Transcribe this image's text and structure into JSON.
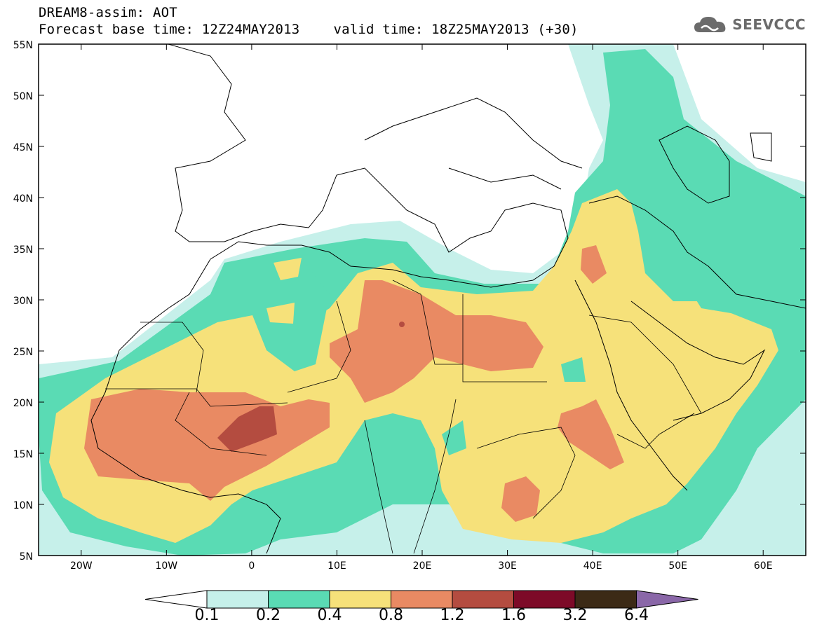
{
  "header": {
    "title": "DREAM8-assim: AOT",
    "base_time": "Forecast base time: 12Z24MAY2013",
    "valid_time": "valid time: 18Z25MAY2013 (+30)"
  },
  "logo": {
    "text": "SEEVCCC",
    "icon": "cloud-icon"
  },
  "map": {
    "lat_labels": [
      "55N",
      "50N",
      "45N",
      "40N",
      "35N",
      "30N",
      "25N",
      "20N",
      "15N",
      "10N",
      "5N"
    ],
    "lon_labels": [
      "20W",
      "10W",
      "0",
      "10E",
      "20E",
      "30E",
      "40E",
      "50E",
      "60E"
    ],
    "lon_range": [
      -25,
      65
    ],
    "lat_range": [
      5,
      55
    ],
    "field": "AOT"
  },
  "colorbar": {
    "levels": [
      "0.1",
      "0.2",
      "0.4",
      "0.8",
      "1.2",
      "1.6",
      "3.2",
      "6.4"
    ],
    "colors": [
      "#c6f0ea",
      "#5adbb4",
      "#f6e17a",
      "#e98a63",
      "#b44c40",
      "#7d0a28",
      "#3c2a16",
      "#8a67a8"
    ],
    "under_color": "#ffffff"
  }
}
